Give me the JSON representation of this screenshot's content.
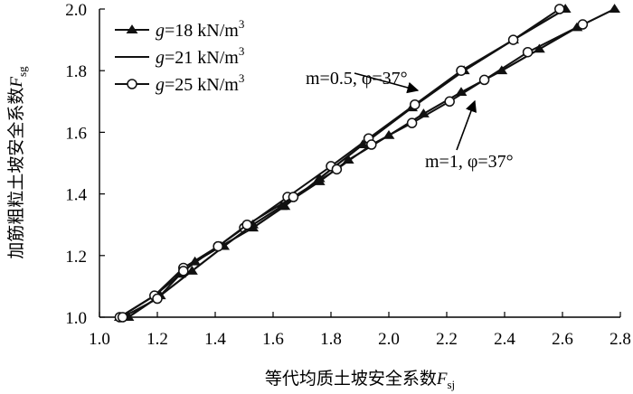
{
  "chart_data": {
    "type": "line",
    "xlabel": "等代均质土坡安全系数",
    "xlabel_sub": "F",
    "xlabel_subscript": "sj",
    "ylabel": "加筋粗粒土坡安全系数",
    "ylabel_sub": "F",
    "ylabel_subscript": "sg",
    "xlim": [
      1.0,
      2.8
    ],
    "ylim": [
      1.0,
      2.0
    ],
    "x_ticks": [
      "1.0",
      "1.2",
      "1.4",
      "1.6",
      "1.8",
      "2.0",
      "2.2",
      "2.4",
      "2.6",
      "2.8"
    ],
    "y_ticks": [
      "1.0",
      "1.2",
      "1.4",
      "1.6",
      "1.8",
      "2.0"
    ],
    "legend": [
      {
        "prefix": "g",
        "text": "=18 kN/m",
        "sup": "3",
        "marker": "triangle"
      },
      {
        "prefix": "g",
        "text": "=21 kN/m",
        "sup": "3",
        "marker": "none"
      },
      {
        "prefix": "g",
        "text": "=25 kN/m",
        "sup": "3",
        "marker": "circle"
      }
    ],
    "annotations": [
      {
        "text": "m=0.5, φ=37°",
        "target_group": "m=0.5"
      },
      {
        "text": "m=1, φ=37°",
        "target_group": "m=1"
      }
    ],
    "series": [
      {
        "group": "m=0.5",
        "marker": "triangle",
        "x": [
          1.07,
          1.19,
          1.28,
          1.33,
          1.42,
          1.53,
          1.64,
          1.76,
          1.91,
          2.08,
          2.26,
          2.43,
          2.61
        ],
        "y": [
          1.0,
          1.07,
          1.14,
          1.18,
          1.23,
          1.29,
          1.36,
          1.45,
          1.56,
          1.68,
          1.8,
          1.9,
          2.0
        ]
      },
      {
        "group": "m=0.5",
        "marker": "none",
        "x": [
          1.07,
          1.19,
          1.28,
          1.33,
          1.42,
          1.53,
          1.64,
          1.76,
          1.91,
          2.08,
          2.26,
          2.43,
          2.61
        ],
        "y": [
          1.0,
          1.07,
          1.14,
          1.18,
          1.23,
          1.29,
          1.36,
          1.45,
          1.56,
          1.68,
          1.8,
          1.9,
          2.0
        ]
      },
      {
        "group": "m=0.5",
        "marker": "circle",
        "x": [
          1.07,
          1.19,
          1.29,
          1.41,
          1.5,
          1.65,
          1.8,
          1.93,
          2.09,
          2.25,
          2.43,
          2.59
        ],
        "y": [
          1.0,
          1.07,
          1.16,
          1.23,
          1.29,
          1.39,
          1.49,
          1.58,
          1.69,
          1.8,
          1.9,
          2.0
        ]
      },
      {
        "group": "m=1",
        "marker": "triangle",
        "x": [
          1.1,
          1.21,
          1.32,
          1.43,
          1.53,
          1.63,
          1.76,
          1.86,
          2.0,
          2.12,
          2.25,
          2.39,
          2.52,
          2.65,
          2.78
        ],
        "y": [
          1.0,
          1.07,
          1.15,
          1.23,
          1.3,
          1.36,
          1.44,
          1.51,
          1.59,
          1.66,
          1.73,
          1.8,
          1.87,
          1.94,
          2.0
        ]
      },
      {
        "group": "m=1",
        "marker": "none",
        "x": [
          1.1,
          1.21,
          1.32,
          1.43,
          1.53,
          1.63,
          1.76,
          1.86,
          2.0,
          2.12,
          2.25,
          2.39,
          2.52,
          2.65,
          2.78
        ],
        "y": [
          1.0,
          1.07,
          1.15,
          1.23,
          1.3,
          1.36,
          1.44,
          1.51,
          1.59,
          1.66,
          1.73,
          1.8,
          1.87,
          1.94,
          2.0
        ]
      },
      {
        "group": "m=1",
        "marker": "circle",
        "x": [
          1.08,
          1.2,
          1.29,
          1.41,
          1.51,
          1.67,
          1.82,
          1.94,
          2.08,
          2.21,
          2.33,
          2.48,
          2.67
        ],
        "y": [
          1.0,
          1.06,
          1.15,
          1.23,
          1.3,
          1.39,
          1.48,
          1.56,
          1.63,
          1.7,
          1.77,
          1.86,
          1.95
        ]
      }
    ],
    "grid": false,
    "legend_position": "top-left"
  }
}
